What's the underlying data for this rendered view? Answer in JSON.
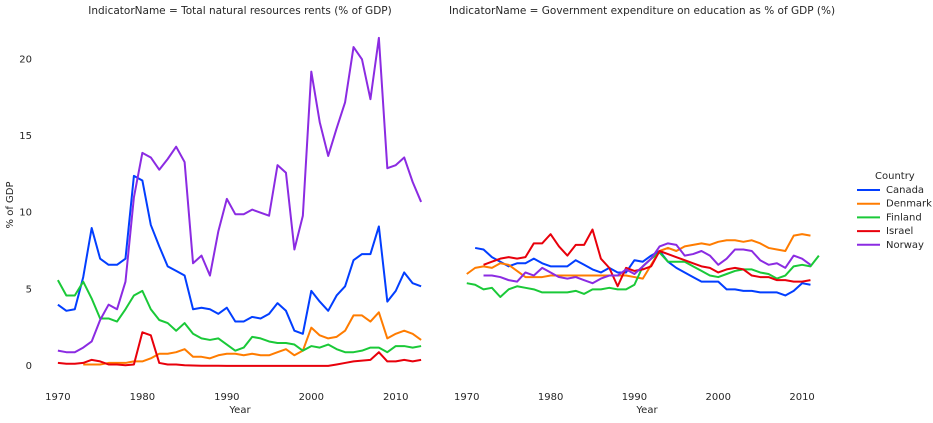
{
  "chart_data": [
    {
      "type": "line",
      "title": "IndicatorName = Total natural resources rents (% of GDP)",
      "xlabel": "Year",
      "ylabel": "% of GDP",
      "legend_title": "Country",
      "legend": "right",
      "x": [
        1970,
        1971,
        1972,
        1973,
        1974,
        1975,
        1976,
        1977,
        1978,
        1979,
        1980,
        1981,
        1982,
        1983,
        1984,
        1985,
        1986,
        1987,
        1988,
        1989,
        1990,
        1991,
        1992,
        1993,
        1994,
        1995,
        1996,
        1997,
        1998,
        1999,
        2000,
        2001,
        2002,
        2003,
        2004,
        2005,
        2006,
        2007,
        2008,
        2009,
        2010,
        2011,
        2012,
        2013
      ],
      "xlim": [
        1968,
        2015
      ],
      "xticks": [
        1970,
        1980,
        1990,
        2000,
        2010
      ],
      "ylim": [
        -1.5,
        22.5
      ],
      "yticks": [
        0,
        5,
        10,
        15,
        20
      ],
      "series": [
        {
          "name": "Canada",
          "color": "#023eff",
          "values": [
            4.0,
            3.6,
            3.7,
            5.8,
            9.0,
            7.0,
            6.6,
            6.6,
            7.0,
            12.4,
            12.1,
            9.2,
            7.8,
            6.5,
            6.2,
            5.9,
            3.7,
            3.8,
            3.7,
            3.4,
            3.8,
            2.9,
            2.9,
            3.2,
            3.1,
            3.4,
            4.1,
            3.6,
            2.3,
            2.1,
            4.9,
            4.2,
            3.6,
            4.6,
            5.2,
            6.9,
            7.3,
            7.3,
            9.1,
            4.2,
            4.9,
            6.1,
            5.4,
            5.2
          ]
        },
        {
          "name": "Denmark",
          "color": "#ff7c00",
          "values": [
            null,
            null,
            null,
            0.1,
            0.1,
            0.1,
            0.2,
            0.2,
            0.2,
            0.3,
            0.3,
            0.5,
            0.8,
            0.8,
            0.9,
            1.1,
            0.6,
            0.6,
            0.5,
            0.7,
            0.8,
            0.8,
            0.7,
            0.8,
            0.7,
            0.7,
            0.9,
            1.1,
            0.7,
            1.0,
            2.5,
            2.0,
            1.8,
            1.9,
            2.3,
            3.3,
            3.3,
            2.9,
            3.5,
            1.8,
            2.1,
            2.3,
            2.1,
            1.7
          ]
        },
        {
          "name": "Finland",
          "color": "#1ac938",
          "values": [
            5.6,
            4.6,
            4.6,
            5.5,
            4.4,
            3.1,
            3.1,
            2.9,
            3.7,
            4.6,
            4.9,
            3.7,
            3.0,
            2.8,
            2.3,
            2.8,
            2.1,
            1.8,
            1.7,
            1.8,
            1.4,
            1.0,
            1.2,
            1.9,
            1.8,
            1.6,
            1.5,
            1.5,
            1.4,
            1.0,
            1.3,
            1.2,
            1.4,
            1.1,
            0.9,
            0.9,
            1.0,
            1.2,
            1.2,
            0.9,
            1.3,
            1.3,
            1.2,
            1.3
          ]
        },
        {
          "name": "Israel",
          "color": "#e8000b",
          "values": [
            0.2,
            0.15,
            0.15,
            0.2,
            0.4,
            0.3,
            0.1,
            0.1,
            0.05,
            0.1,
            2.2,
            2.0,
            0.2,
            0.1,
            0.1,
            0.05,
            0.03,
            0.02,
            0.02,
            0.02,
            0.01,
            0.01,
            0.01,
            0.01,
            0.01,
            0.01,
            0.01,
            0.01,
            0.01,
            0.01,
            0.01,
            0.01,
            0.01,
            0.1,
            0.2,
            0.3,
            0.35,
            0.4,
            0.9,
            0.3,
            0.3,
            0.4,
            0.3,
            0.4
          ]
        },
        {
          "name": "Norway",
          "color": "#8b2be2",
          "values": [
            1.0,
            0.9,
            0.9,
            1.2,
            1.6,
            3.0,
            4.0,
            3.7,
            5.5,
            11.0,
            13.9,
            13.6,
            12.8,
            13.5,
            14.3,
            13.3,
            6.7,
            7.2,
            5.9,
            8.8,
            10.9,
            9.9,
            9.9,
            10.2,
            10.0,
            9.8,
            13.1,
            12.6,
            7.6,
            9.8,
            19.2,
            15.9,
            13.7,
            15.5,
            17.2,
            20.8,
            20.0,
            17.4,
            21.4,
            12.9,
            13.1,
            13.6,
            12.0,
            10.7
          ]
        }
      ]
    },
    {
      "type": "line",
      "title": "IndicatorName = Government expenditure on education as % of GDP (%)",
      "xlabel": "Year",
      "x": [
        1970,
        1971,
        1972,
        1973,
        1974,
        1975,
        1976,
        1977,
        1978,
        1979,
        1980,
        1981,
        1982,
        1983,
        1984,
        1985,
        1986,
        1987,
        1988,
        1989,
        1990,
        1991,
        1992,
        1993,
        1994,
        1995,
        1996,
        1997,
        1998,
        1999,
        2000,
        2001,
        2002,
        2003,
        2004,
        2005,
        2006,
        2007,
        2008,
        2009,
        2010,
        2011,
        2012
      ],
      "xlim": [
        1968,
        2015
      ],
      "xticks": [
        1970,
        1980,
        1990,
        2000,
        2010
      ],
      "ylim": [
        -1.5,
        22.5
      ],
      "series": [
        {
          "name": "Canada",
          "color": "#023eff",
          "values": [
            null,
            7.7,
            7.6,
            7.1,
            6.8,
            6.5,
            6.7,
            6.7,
            7.0,
            6.7,
            6.5,
            6.5,
            6.5,
            6.9,
            6.6,
            6.3,
            6.1,
            6.4,
            6.1,
            6.1,
            6.9,
            6.8,
            7.2,
            7.5,
            6.8,
            6.4,
            6.1,
            5.8,
            5.5,
            5.5,
            5.5,
            5.0,
            5.0,
            4.9,
            4.9,
            4.8,
            4.8,
            4.8,
            4.6,
            4.9,
            5.4,
            5.3,
            null
          ]
        },
        {
          "name": "Denmark",
          "color": "#ff7c00",
          "values": [
            6.0,
            6.4,
            6.5,
            6.4,
            6.7,
            6.6,
            6.2,
            5.8,
            5.8,
            5.8,
            5.9,
            5.9,
            5.9,
            5.9,
            5.9,
            5.9,
            5.9,
            5.9,
            5.9,
            5.9,
            5.8,
            5.7,
            6.6,
            7.5,
            7.7,
            7.5,
            7.8,
            7.9,
            8.0,
            7.9,
            8.1,
            8.2,
            8.2,
            8.1,
            8.2,
            8.0,
            7.7,
            7.6,
            7.5,
            8.5,
            8.6,
            8.5,
            null
          ]
        },
        {
          "name": "Finland",
          "color": "#1ac938",
          "values": [
            5.4,
            5.3,
            5.0,
            5.1,
            4.5,
            5.0,
            5.2,
            5.1,
            5.0,
            4.8,
            4.8,
            4.8,
            4.8,
            4.9,
            4.7,
            5.0,
            5.0,
            5.1,
            5.0,
            5.0,
            5.3,
            6.5,
            7.0,
            7.4,
            6.8,
            6.8,
            6.8,
            6.5,
            6.2,
            5.9,
            5.8,
            6.0,
            6.2,
            6.3,
            6.3,
            6.1,
            6.0,
            5.7,
            5.9,
            6.5,
            6.6,
            6.5,
            7.2
          ]
        },
        {
          "name": "Israel",
          "color": "#e8000b",
          "values": [
            null,
            null,
            6.6,
            6.8,
            7.0,
            7.1,
            7.0,
            7.1,
            8.0,
            8.0,
            8.6,
            7.8,
            7.2,
            7.9,
            7.9,
            8.9,
            7.0,
            6.4,
            5.2,
            6.4,
            6.2,
            6.3,
            6.5,
            7.5,
            7.3,
            7.1,
            6.9,
            6.7,
            6.5,
            6.4,
            6.1,
            6.3,
            6.4,
            6.3,
            5.9,
            5.8,
            5.8,
            5.6,
            5.6,
            5.5,
            5.5,
            5.6,
            null
          ]
        },
        {
          "name": "Norway",
          "color": "#8b2be2",
          "values": [
            null,
            null,
            5.9,
            5.9,
            5.8,
            5.6,
            5.5,
            6.1,
            5.9,
            6.4,
            6.1,
            5.8,
            5.7,
            5.8,
            5.6,
            5.4,
            5.7,
            5.9,
            5.9,
            6.3,
            6.0,
            6.5,
            7.0,
            7.8,
            8.0,
            7.9,
            7.2,
            7.3,
            7.5,
            7.2,
            6.6,
            7.0,
            7.6,
            7.6,
            7.5,
            6.9,
            6.6,
            6.7,
            6.4,
            7.2,
            7.0,
            6.6,
            null
          ]
        }
      ]
    }
  ]
}
